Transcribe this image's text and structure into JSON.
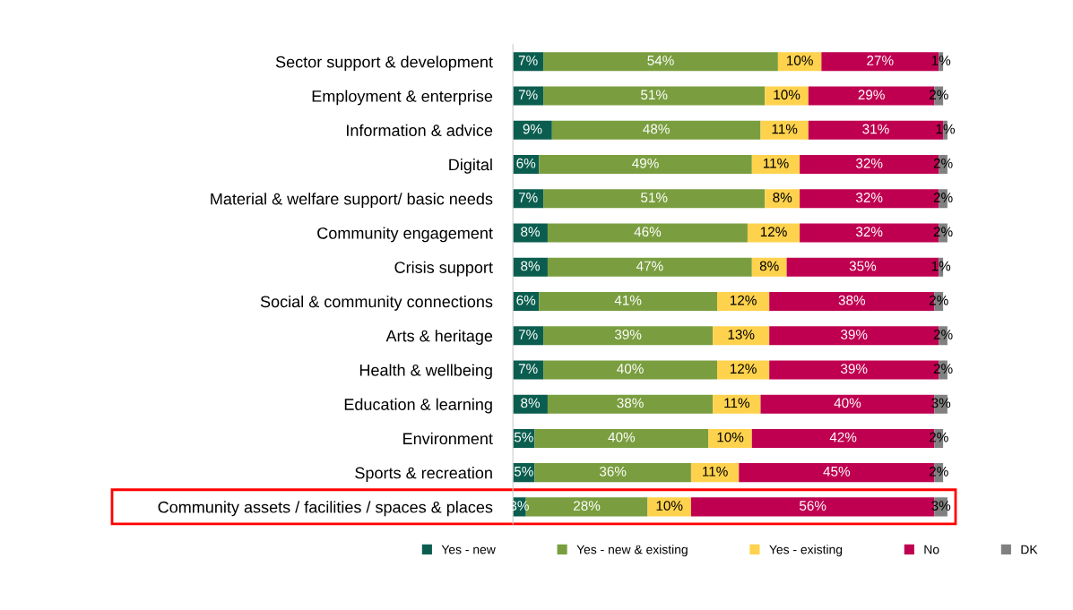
{
  "chart_data": {
    "type": "bar",
    "orientation": "horizontal",
    "stacked": true,
    "legend": "bottom",
    "grid": false,
    "categories": [
      "Sector support & development",
      "Employment & enterprise",
      "Information & advice",
      "Digital",
      "Material & welfare support/ basic needs",
      "Community engagement",
      "Crisis support",
      "Social & community connections",
      "Arts & heritage",
      "Health & wellbeing",
      "Education & learning",
      "Environment",
      "Sports & recreation",
      "Community assets / facilities / spaces & places"
    ],
    "series": [
      {
        "name": "Yes - new",
        "color": "#0b5e4f",
        "values": [
          7,
          7,
          9,
          6,
          7,
          8,
          8,
          6,
          7,
          7,
          8,
          5,
          5,
          3
        ],
        "value_labels": [
          "7%",
          "7%",
          "9%",
          "6%",
          "7%",
          "8%",
          "8%",
          "6%",
          "7%",
          "7%",
          "8%",
          "5%",
          "5%",
          "3%"
        ]
      },
      {
        "name": "Yes - new & existing",
        "color": "#7a9e3f",
        "values": [
          54,
          51,
          48,
          49,
          51,
          46,
          47,
          41,
          39,
          40,
          38,
          40,
          36,
          28
        ],
        "value_labels": [
          "54%",
          "51%",
          "48%",
          "49%",
          "51%",
          "46%",
          "47%",
          "41%",
          "39%",
          "40%",
          "38%",
          "40%",
          "36%",
          "28%"
        ]
      },
      {
        "name": "Yes - existing",
        "color": "#ffd24d",
        "values": [
          10,
          10,
          11,
          11,
          8,
          12,
          8,
          12,
          13,
          12,
          11,
          10,
          11,
          10
        ],
        "value_labels": [
          "10%",
          "10%",
          "11%",
          "11%",
          "8%",
          "12%",
          "8%",
          "12%",
          "13%",
          "12%",
          "11%",
          "10%",
          "11%",
          "10%"
        ]
      },
      {
        "name": "No",
        "color": "#bf0050",
        "values": [
          27,
          29,
          31,
          32,
          32,
          32,
          35,
          38,
          39,
          39,
          40,
          42,
          45,
          56
        ],
        "value_labels": [
          "27%",
          "29%",
          "31%",
          "32%",
          "32%",
          "32%",
          "35%",
          "38%",
          "39%",
          "39%",
          "40%",
          "42%",
          "45%",
          "56%"
        ]
      },
      {
        "name": "DK",
        "color": "#808080",
        "values": [
          1,
          2,
          1,
          2,
          2,
          2,
          1,
          2,
          2,
          2,
          3,
          2,
          2,
          3
        ],
        "value_labels": [
          "1%",
          "2%",
          "1%",
          "2%",
          "2%",
          "2%",
          "1%",
          "2%",
          "2%",
          "2%",
          "3%",
          "2%",
          "2%",
          "3%"
        ]
      }
    ]
  }
}
